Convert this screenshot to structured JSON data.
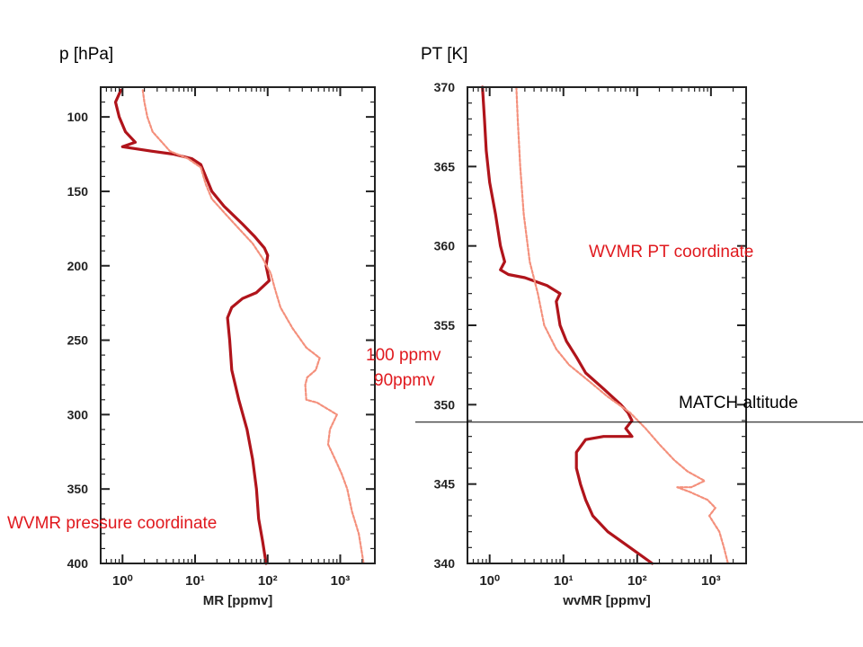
{
  "labels": {
    "left_ylabel": "p [hPa]",
    "right_ylabel": "PT [K]",
    "left_annotation": "WVMR pressure coordinate",
    "right_annotation": "WVMR PT coordinate",
    "match_label": "MATCH altitude",
    "ppmv_100": "100 ppmv",
    "ppmv_90": "90ppmv"
  },
  "colors": {
    "dark_series": "#b0141b",
    "light_series": "#f4907c",
    "annotation": "#e0191e"
  },
  "chart_data": [
    {
      "type": "line",
      "title": "",
      "xlabel": "MR [ppmv]",
      "ylabel": "p [hPa]",
      "xscale": "log",
      "xlim": [
        0.5,
        3000
      ],
      "ylim": [
        400,
        80
      ],
      "y_inverted": true,
      "xticks": [
        1,
        10,
        100,
        1000
      ],
      "xtick_labels": [
        "10⁰",
        "10¹",
        "10²",
        "10³"
      ],
      "yticks": [
        100,
        150,
        200,
        250,
        300,
        350,
        400
      ],
      "ytick_labels": [
        "100",
        "150",
        "200",
        "250",
        "300",
        "350",
        "400"
      ],
      "grid": false,
      "series": [
        {
          "color": "dark",
          "points": [
            [
              0.95,
              82
            ],
            [
              0.8,
              90
            ],
            [
              0.9,
              100
            ],
            [
              1.1,
              110
            ],
            [
              1.5,
              117
            ],
            [
              1.0,
              120
            ],
            [
              2.5,
              123
            ],
            [
              5,
              125
            ],
            [
              9,
              128
            ],
            [
              12,
              132
            ],
            [
              14,
              140
            ],
            [
              17,
              150
            ],
            [
              25,
              160
            ],
            [
              45,
              172
            ],
            [
              65,
              180
            ],
            [
              90,
              188
            ],
            [
              100,
              193
            ],
            [
              95,
              200
            ],
            [
              105,
              210
            ],
            [
              70,
              218
            ],
            [
              45,
              222
            ],
            [
              32,
              228
            ],
            [
              28,
              235
            ],
            [
              30,
              250
            ],
            [
              32,
              270
            ],
            [
              40,
              290
            ],
            [
              52,
              310
            ],
            [
              62,
              330
            ],
            [
              70,
              350
            ],
            [
              75,
              370
            ],
            [
              85,
              385
            ],
            [
              95,
              400
            ]
          ]
        },
        {
          "color": "light",
          "points": [
            [
              1.9,
              82
            ],
            [
              2.0,
              90
            ],
            [
              2.2,
              100
            ],
            [
              2.6,
              110
            ],
            [
              3.5,
              117
            ],
            [
              4.5,
              123
            ],
            [
              8,
              128
            ],
            [
              12,
              134
            ],
            [
              14,
              145
            ],
            [
              17,
              155
            ],
            [
              26,
              165
            ],
            [
              40,
              175
            ],
            [
              62,
              185
            ],
            [
              85,
              195
            ],
            [
              110,
              205
            ],
            [
              125,
              215
            ],
            [
              150,
              228
            ],
            [
              220,
              242
            ],
            [
              340,
              255
            ],
            [
              520,
              262
            ],
            [
              460,
              270
            ],
            [
              350,
              275
            ],
            [
              330,
              280
            ],
            [
              340,
              290
            ],
            [
              480,
              292
            ],
            [
              900,
              300
            ],
            [
              720,
              310
            ],
            [
              680,
              320
            ],
            [
              850,
              330
            ],
            [
              1050,
              340
            ],
            [
              1250,
              350
            ],
            [
              1450,
              365
            ],
            [
              1800,
              380
            ],
            [
              2100,
              400
            ]
          ]
        }
      ]
    },
    {
      "type": "line",
      "title": "",
      "xlabel": "wvMR [ppmv]",
      "ylabel": "PT [K]",
      "xscale": "log",
      "xlim": [
        0.5,
        3000
      ],
      "ylim": [
        340,
        370
      ],
      "xticks": [
        1,
        10,
        100,
        1000
      ],
      "xtick_labels": [
        "10⁰",
        "10¹",
        "10²",
        "10³"
      ],
      "yticks": [
        340,
        345,
        350,
        355,
        360,
        365,
        370
      ],
      "ytick_labels": [
        "340",
        "345",
        "350",
        "355",
        "360",
        "365",
        "370"
      ],
      "grid": false,
      "annotations": {
        "match_altitude_pt": 348.9
      },
      "series": [
        {
          "color": "dark",
          "points": [
            [
              0.8,
              370
            ],
            [
              0.85,
              368
            ],
            [
              0.9,
              366
            ],
            [
              1.0,
              364
            ],
            [
              1.2,
              362
            ],
            [
              1.4,
              360
            ],
            [
              1.6,
              359
            ],
            [
              1.4,
              358.5
            ],
            [
              1.8,
              358.2
            ],
            [
              3,
              358
            ],
            [
              6,
              357.5
            ],
            [
              9,
              357
            ],
            [
              8,
              356.5
            ],
            [
              9,
              355
            ],
            [
              11,
              354
            ],
            [
              15,
              353
            ],
            [
              20,
              352
            ],
            [
              35,
              351
            ],
            [
              60,
              350
            ],
            [
              75,
              349.5
            ],
            [
              85,
              349
            ],
            [
              70,
              348.5
            ],
            [
              85,
              348
            ],
            [
              65,
              348
            ],
            [
              35,
              348
            ],
            [
              20,
              347.8
            ],
            [
              15,
              347
            ],
            [
              15,
              346
            ],
            [
              17,
              345
            ],
            [
              20,
              344
            ],
            [
              25,
              343
            ],
            [
              40,
              342
            ],
            [
              80,
              341
            ],
            [
              160,
              340
            ]
          ]
        },
        {
          "color": "light",
          "points": [
            [
              2.3,
              370
            ],
            [
              2.4,
              368
            ],
            [
              2.6,
              365
            ],
            [
              2.9,
              362
            ],
            [
              3.5,
              359
            ],
            [
              4.5,
              357
            ],
            [
              5.5,
              355
            ],
            [
              8,
              353.5
            ],
            [
              12,
              352.5
            ],
            [
              22,
              351.5
            ],
            [
              40,
              350.5
            ],
            [
              80,
              349.5
            ],
            [
              130,
              348.5
            ],
            [
              200,
              347.5
            ],
            [
              320,
              346.5
            ],
            [
              480,
              345.8
            ],
            [
              820,
              345.2
            ],
            [
              540,
              344.8
            ],
            [
              350,
              344.8
            ],
            [
              520,
              344.5
            ],
            [
              900,
              344
            ],
            [
              1150,
              343.5
            ],
            [
              950,
              343
            ],
            [
              1300,
              342
            ],
            [
              1500,
              341
            ],
            [
              1700,
              340
            ]
          ]
        }
      ]
    }
  ]
}
